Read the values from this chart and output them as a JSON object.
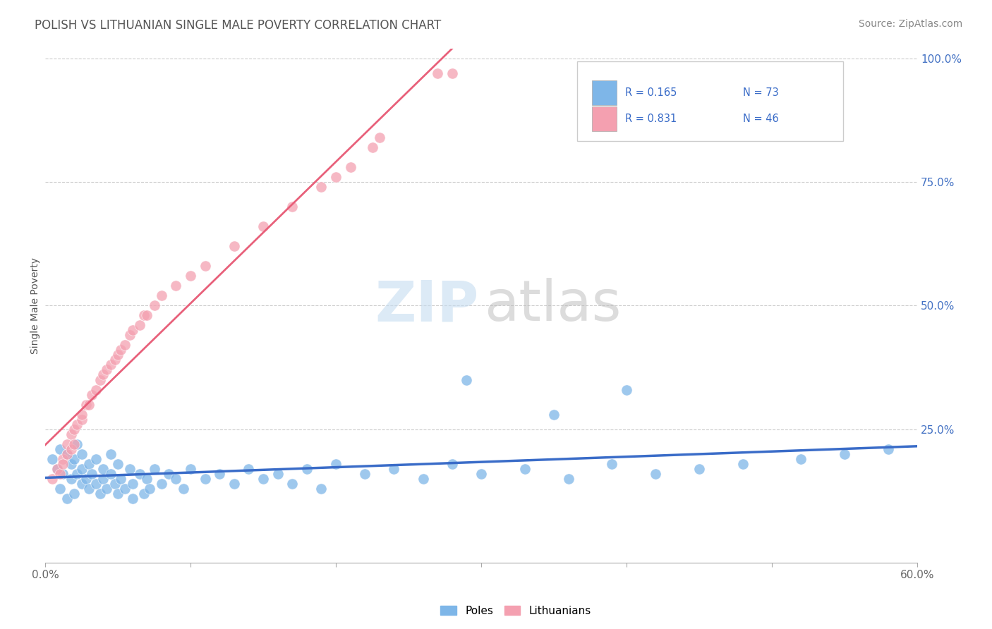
{
  "title": "POLISH VS LITHUANIAN SINGLE MALE POVERTY CORRELATION CHART",
  "source": "Source: ZipAtlas.com",
  "ylabel": "Single Male Poverty",
  "xlim": [
    0.0,
    0.6
  ],
  "ylim": [
    -0.02,
    1.02
  ],
  "xtick_pos": [
    0.0,
    0.1,
    0.2,
    0.3,
    0.4,
    0.5,
    0.6
  ],
  "xtick_labels": [
    "0.0%",
    "",
    "",
    "",
    "",
    "",
    "60.0%"
  ],
  "ytick_labels_right": [
    "100.0%",
    "75.0%",
    "50.0%",
    "25.0%"
  ],
  "ytick_positions_right": [
    1.0,
    0.75,
    0.5,
    0.25
  ],
  "poles_R": 0.165,
  "poles_N": 73,
  "lithuanians_R": 0.831,
  "lithuanians_N": 46,
  "poles_color": "#7EB6E8",
  "lithuanians_color": "#F4A0B0",
  "poles_line_color": "#3A6CC8",
  "lithuanians_line_color": "#E8607A",
  "background_color": "#FFFFFF",
  "grid_color": "#CCCCCC",
  "title_color": "#555555",
  "right_tick_color": "#4472C4",
  "watermark_ZIP_color": "#C5DCF0",
  "watermark_atlas_color": "#BBBBBB",
  "poles_x": [
    0.005,
    0.008,
    0.01,
    0.01,
    0.012,
    0.015,
    0.015,
    0.018,
    0.018,
    0.02,
    0.02,
    0.022,
    0.022,
    0.025,
    0.025,
    0.025,
    0.028,
    0.03,
    0.03,
    0.032,
    0.035,
    0.035,
    0.038,
    0.04,
    0.04,
    0.042,
    0.045,
    0.045,
    0.048,
    0.05,
    0.05,
    0.052,
    0.055,
    0.058,
    0.06,
    0.06,
    0.065,
    0.068,
    0.07,
    0.072,
    0.075,
    0.08,
    0.085,
    0.09,
    0.095,
    0.1,
    0.11,
    0.12,
    0.13,
    0.14,
    0.15,
    0.16,
    0.17,
    0.18,
    0.19,
    0.2,
    0.22,
    0.24,
    0.26,
    0.28,
    0.3,
    0.33,
    0.36,
    0.39,
    0.42,
    0.45,
    0.48,
    0.52,
    0.55,
    0.58,
    0.29,
    0.4,
    0.35
  ],
  "poles_y": [
    0.19,
    0.17,
    0.21,
    0.13,
    0.16,
    0.2,
    0.11,
    0.18,
    0.15,
    0.19,
    0.12,
    0.16,
    0.22,
    0.14,
    0.17,
    0.2,
    0.15,
    0.13,
    0.18,
    0.16,
    0.14,
    0.19,
    0.12,
    0.15,
    0.17,
    0.13,
    0.16,
    0.2,
    0.14,
    0.18,
    0.12,
    0.15,
    0.13,
    0.17,
    0.11,
    0.14,
    0.16,
    0.12,
    0.15,
    0.13,
    0.17,
    0.14,
    0.16,
    0.15,
    0.13,
    0.17,
    0.15,
    0.16,
    0.14,
    0.17,
    0.15,
    0.16,
    0.14,
    0.17,
    0.13,
    0.18,
    0.16,
    0.17,
    0.15,
    0.18,
    0.16,
    0.17,
    0.15,
    0.18,
    0.16,
    0.17,
    0.18,
    0.19,
    0.2,
    0.21,
    0.35,
    0.33,
    0.28
  ],
  "lith_x": [
    0.005,
    0.008,
    0.01,
    0.012,
    0.012,
    0.015,
    0.015,
    0.018,
    0.018,
    0.02,
    0.02,
    0.022,
    0.025,
    0.025,
    0.028,
    0.03,
    0.032,
    0.035,
    0.038,
    0.04,
    0.042,
    0.045,
    0.048,
    0.05,
    0.052,
    0.055,
    0.058,
    0.06,
    0.065,
    0.068,
    0.07,
    0.075,
    0.08,
    0.09,
    0.1,
    0.11,
    0.13,
    0.15,
    0.17,
    0.19,
    0.2,
    0.21,
    0.225,
    0.23,
    0.27,
    0.28
  ],
  "lith_y": [
    0.15,
    0.17,
    0.16,
    0.19,
    0.18,
    0.2,
    0.22,
    0.21,
    0.24,
    0.22,
    0.25,
    0.26,
    0.27,
    0.28,
    0.3,
    0.3,
    0.32,
    0.33,
    0.35,
    0.36,
    0.37,
    0.38,
    0.39,
    0.4,
    0.41,
    0.42,
    0.44,
    0.45,
    0.46,
    0.48,
    0.48,
    0.5,
    0.52,
    0.54,
    0.56,
    0.58,
    0.62,
    0.66,
    0.7,
    0.74,
    0.76,
    0.78,
    0.82,
    0.84,
    0.97,
    0.97
  ]
}
